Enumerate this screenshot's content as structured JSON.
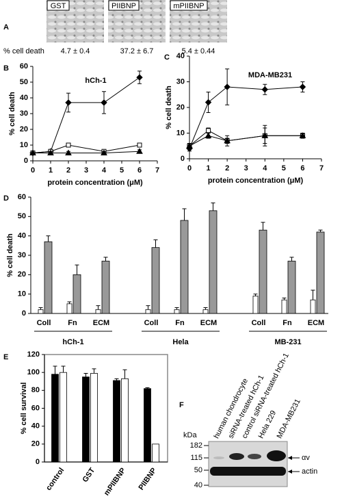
{
  "panel_labels": [
    "A",
    "B",
    "C",
    "D",
    "E",
    "F"
  ],
  "panel_a": {
    "images": [
      "GST",
      "PIIBNP",
      "mPIIBNP"
    ],
    "row_label": "% cell death",
    "values": [
      "4.7 ± 0.4",
      "37.2 ± 6.7",
      "5.4 ± 0.44"
    ]
  },
  "chart_data": [
    {
      "type": "line",
      "title": "hCh-1",
      "xlabel": "protein concentration (μM)",
      "ylabel": "% cell death",
      "x": [
        0,
        1,
        2,
        4,
        6
      ],
      "xlim": [
        0,
        7
      ],
      "xticks": [
        0,
        1,
        2,
        3,
        4,
        5,
        6,
        7
      ],
      "ylim": [
        0,
        60
      ],
      "yticks": [
        0,
        10,
        20,
        30,
        40,
        50,
        60
      ],
      "series": [
        {
          "color": "#000000",
          "marker": "diamond",
          "values": [
            5,
            6,
            37,
            37,
            53
          ],
          "errors": [
            0,
            1,
            6,
            7,
            4
          ]
        },
        {
          "color": "#000000",
          "marker": "square",
          "values": [
            5,
            6,
            10,
            6,
            10
          ],
          "errors": [
            0,
            1,
            1,
            1,
            1
          ]
        },
        {
          "color": "#000000",
          "marker": "triangle",
          "values": [
            5,
            5,
            5,
            5,
            6
          ],
          "errors": [
            0,
            1,
            1,
            1,
            1
          ]
        }
      ]
    },
    {
      "type": "line",
      "title": "MDA-MB231",
      "xlabel": "protein concentration (μM)",
      "ylabel": "% cell death",
      "x": [
        0,
        1,
        2,
        4,
        6
      ],
      "xlim": [
        0,
        7
      ],
      "xticks": [
        0,
        1,
        2,
        3,
        4,
        5,
        6,
        7
      ],
      "ylim": [
        0,
        40
      ],
      "yticks": [
        0,
        10,
        20,
        30,
        40
      ],
      "series": [
        {
          "color": "#000000",
          "marker": "diamond",
          "values": [
            4,
            22,
            28,
            27,
            28
          ],
          "errors": [
            1,
            4,
            7,
            2,
            2
          ]
        },
        {
          "color": "#000000",
          "marker": "square",
          "values": [
            5,
            11,
            7,
            9,
            9
          ],
          "errors": [
            1,
            1,
            2,
            3,
            1
          ]
        },
        {
          "color": "#000000",
          "marker": "triangle",
          "values": [
            5,
            9,
            7,
            9,
            9
          ],
          "errors": [
            0,
            1,
            1,
            4,
            1
          ]
        }
      ]
    },
    {
      "type": "bar",
      "ylabel": "% cell death",
      "categories": [
        "Coll",
        "Fn",
        "ECM",
        "Coll",
        "Fn",
        "ECM",
        "Coll",
        "Fn",
        "ECM"
      ],
      "groups": [
        "hCh-1",
        "Hela",
        "MB-231"
      ],
      "ylim": [
        0,
        60
      ],
      "yticks": [
        0,
        10,
        20,
        30,
        40,
        50,
        60
      ],
      "series": [
        {
          "color": "#ffffff",
          "values": [
            2,
            5,
            2,
            2,
            2,
            2,
            9,
            7,
            7
          ],
          "errors": [
            1,
            1,
            2,
            2,
            1,
            1,
            1,
            1,
            5
          ]
        },
        {
          "color": "#999999",
          "values": [
            37,
            20,
            27,
            34,
            48,
            53,
            43,
            27,
            42
          ],
          "errors": [
            3,
            5,
            2,
            4,
            6,
            4,
            4,
            2,
            1
          ]
        }
      ]
    },
    {
      "type": "bar",
      "ylabel": "% cell survival",
      "categories": [
        "control",
        "GST",
        "mPIIBNP",
        "PIIBNP"
      ],
      "ylim": [
        0,
        120
      ],
      "yticks": [
        0,
        20,
        40,
        60,
        80,
        100,
        120
      ],
      "series": [
        {
          "color": "#000000",
          "values": [
            98,
            95,
            91,
            82
          ],
          "errors": [
            9,
            4,
            2,
            1
          ]
        },
        {
          "color": "#ffffff",
          "values": [
            100,
            99,
            93,
            20
          ],
          "errors": [
            7,
            5,
            10,
            0
          ]
        }
      ]
    }
  ],
  "panel_f": {
    "lanes": [
      "human chondrocyte",
      "siRNA-treated hCh-1",
      "control siRNA-treated hCh-1",
      "Hela 229",
      "MDA-MB231"
    ],
    "unit": "kDa",
    "markers": [
      "182",
      "115",
      "50",
      "40"
    ],
    "bands": [
      "αv",
      "actin"
    ]
  }
}
